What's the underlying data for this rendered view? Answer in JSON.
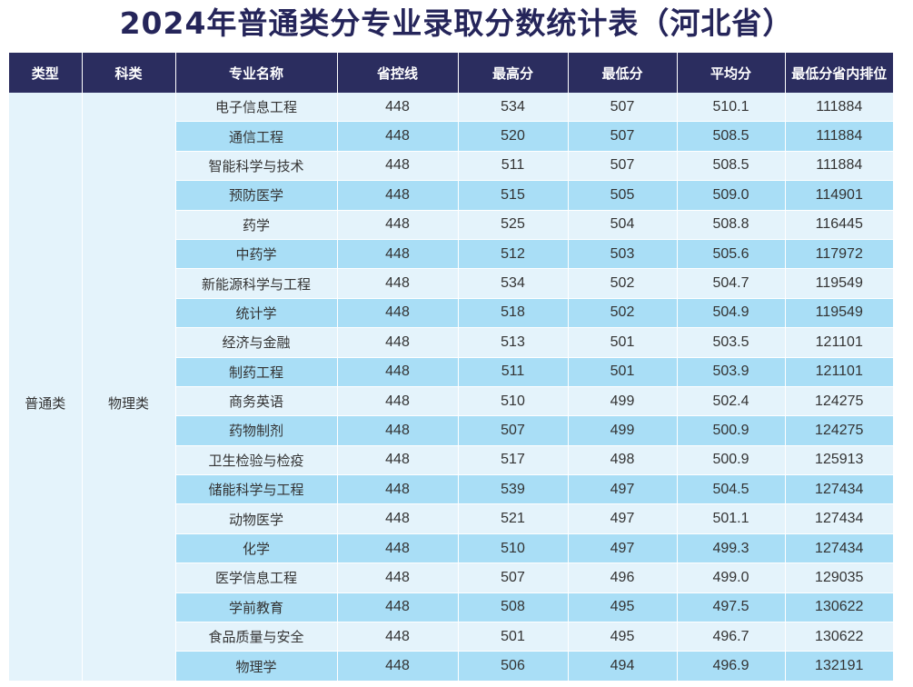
{
  "title": "2024年普通类分专业录取分数统计表（河北省）",
  "headers": [
    "类型",
    "科类",
    "专业名称",
    "省控线",
    "最高分",
    "最低分",
    "平均分",
    "最低分省内排位"
  ],
  "type": "普通类",
  "subject": "物理类",
  "rows": [
    {
      "major": "电子信息工程",
      "control": "448",
      "max": "534",
      "min": "507",
      "avg": "510.1",
      "rank": "111884"
    },
    {
      "major": "通信工程",
      "control": "448",
      "max": "520",
      "min": "507",
      "avg": "508.5",
      "rank": "111884"
    },
    {
      "major": "智能科学与技术",
      "control": "448",
      "max": "511",
      "min": "507",
      "avg": "508.5",
      "rank": "111884"
    },
    {
      "major": "预防医学",
      "control": "448",
      "max": "515",
      "min": "505",
      "avg": "509.0",
      "rank": "114901"
    },
    {
      "major": "药学",
      "control": "448",
      "max": "525",
      "min": "504",
      "avg": "508.8",
      "rank": "116445"
    },
    {
      "major": "中药学",
      "control": "448",
      "max": "512",
      "min": "503",
      "avg": "505.6",
      "rank": "117972"
    },
    {
      "major": "新能源科学与工程",
      "control": "448",
      "max": "534",
      "min": "502",
      "avg": "504.7",
      "rank": "119549"
    },
    {
      "major": "统计学",
      "control": "448",
      "max": "518",
      "min": "502",
      "avg": "504.9",
      "rank": "119549"
    },
    {
      "major": "经济与金融",
      "control": "448",
      "max": "513",
      "min": "501",
      "avg": "503.5",
      "rank": "121101"
    },
    {
      "major": "制药工程",
      "control": "448",
      "max": "511",
      "min": "501",
      "avg": "503.9",
      "rank": "121101"
    },
    {
      "major": "商务英语",
      "control": "448",
      "max": "510",
      "min": "499",
      "avg": "502.4",
      "rank": "124275"
    },
    {
      "major": "药物制剂",
      "control": "448",
      "max": "507",
      "min": "499",
      "avg": "500.9",
      "rank": "124275"
    },
    {
      "major": "卫生检验与检疫",
      "control": "448",
      "max": "517",
      "min": "498",
      "avg": "500.9",
      "rank": "125913"
    },
    {
      "major": "储能科学与工程",
      "control": "448",
      "max": "539",
      "min": "497",
      "avg": "504.5",
      "rank": "127434"
    },
    {
      "major": "动物医学",
      "control": "448",
      "max": "521",
      "min": "497",
      "avg": "501.1",
      "rank": "127434"
    },
    {
      "major": "化学",
      "control": "448",
      "max": "510",
      "min": "497",
      "avg": "499.3",
      "rank": "127434"
    },
    {
      "major": "医学信息工程",
      "control": "448",
      "max": "507",
      "min": "496",
      "avg": "499.0",
      "rank": "129035"
    },
    {
      "major": "学前教育",
      "control": "448",
      "max": "508",
      "min": "495",
      "avg": "497.5",
      "rank": "130622"
    },
    {
      "major": "食品质量与安全",
      "control": "448",
      "max": "501",
      "min": "495",
      "avg": "496.7",
      "rank": "130622"
    },
    {
      "major": "物理学",
      "control": "448",
      "max": "506",
      "min": "494",
      "avg": "496.9",
      "rank": "132191"
    }
  ]
}
